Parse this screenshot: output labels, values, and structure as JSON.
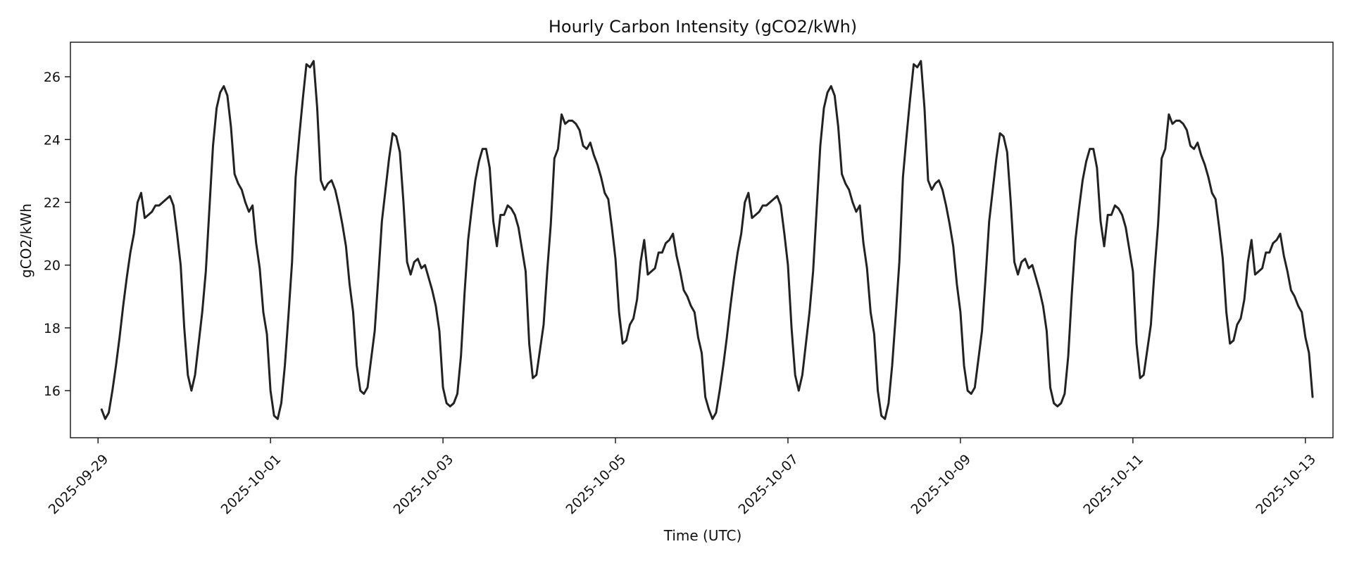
{
  "chart_data": {
    "type": "line",
    "title": "Hourly Carbon Intensity (gCO2/kWh)",
    "xlabel": "Time (UTC)",
    "ylabel": "gCO2/kWh",
    "ylim": [
      14.5,
      27.1
    ],
    "xlim_days": [
      -0.32,
      14.32
    ],
    "y_ticks": [
      16,
      18,
      20,
      22,
      24,
      26
    ],
    "x_ticks": [
      {
        "label": "2025-09-29",
        "day": 0
      },
      {
        "label": "2025-10-01",
        "day": 2
      },
      {
        "label": "2025-10-03",
        "day": 4
      },
      {
        "label": "2025-10-05",
        "day": 6
      },
      {
        "label": "2025-10-07",
        "day": 8
      },
      {
        "label": "2025-10-09",
        "day": 10
      },
      {
        "label": "2025-10-11",
        "day": 12
      },
      {
        "label": "2025-10-13",
        "day": 14
      }
    ],
    "grid": false,
    "line_color": "#222222",
    "series": [
      {
        "name": "carbon_intensity",
        "x_unit": "days since 2025-09-29 00:00 UTC (hourly)",
        "start_day": 0.0417,
        "step_days": 0.041667,
        "values": [
          15.4,
          15.1,
          15.3,
          16.0,
          16.8,
          17.7,
          18.7,
          19.6,
          20.4,
          21.0,
          22.0,
          22.3,
          21.5,
          21.6,
          21.7,
          21.9,
          21.9,
          22.0,
          22.1,
          22.2,
          21.9,
          21.0,
          20.0,
          18.0,
          16.5,
          16.0,
          16.5,
          17.5,
          18.5,
          19.8,
          21.8,
          23.8,
          25.0,
          25.5,
          25.7,
          25.4,
          24.4,
          22.9,
          22.6,
          22.4,
          22.0,
          21.7,
          21.9,
          20.7,
          19.9,
          18.5,
          17.8,
          16.0,
          15.2,
          15.1,
          15.6,
          16.8,
          18.4,
          20.1,
          22.8,
          24.1,
          25.3,
          26.4,
          26.3,
          26.5,
          25.0,
          22.7,
          22.4,
          22.6,
          22.7,
          22.4,
          21.9,
          21.3,
          20.6,
          19.4,
          18.5,
          16.8,
          16.0,
          15.9,
          16.1,
          17.0,
          17.9,
          19.6,
          21.4,
          22.4,
          23.4,
          24.2,
          24.1,
          23.6,
          22.0,
          20.1,
          19.7,
          20.1,
          20.2,
          19.9,
          20.0,
          19.6,
          19.2,
          18.7,
          17.9,
          16.1,
          15.6,
          15.5,
          15.6,
          15.9,
          17.1,
          19.1,
          20.8,
          21.8,
          22.7,
          23.3,
          23.7,
          23.7,
          23.1,
          21.4,
          20.6,
          21.6,
          21.6,
          21.9,
          21.8,
          21.6,
          21.2,
          20.5,
          19.8,
          17.5,
          16.4,
          16.5,
          17.3,
          18.1,
          19.8,
          21.3,
          23.4,
          23.7,
          24.8,
          24.5,
          24.6,
          24.6,
          24.5,
          24.3,
          23.8,
          23.7,
          23.9,
          23.5,
          23.2,
          22.8,
          22.3,
          22.1,
          21.2,
          20.2,
          18.5,
          17.5,
          17.6,
          18.1,
          18.3,
          18.9,
          20.1,
          20.8,
          19.7,
          19.8,
          19.9,
          20.4,
          20.4,
          20.7,
          20.8,
          21.0,
          20.3,
          19.8,
          19.2,
          19.0,
          18.7,
          18.5,
          17.7,
          17.2,
          15.8,
          15.4,
          15.1,
          15.3,
          16.0,
          16.8,
          17.7,
          18.7,
          19.6,
          20.4,
          21.0,
          22.0,
          22.3,
          21.5,
          21.6,
          21.7,
          21.9,
          21.9,
          22.0,
          22.1,
          22.2,
          21.9,
          21.0,
          20.0,
          18.0,
          16.5,
          16.0,
          16.5,
          17.5,
          18.5,
          19.8,
          21.8,
          23.8,
          25.0,
          25.5,
          25.7,
          25.4,
          24.4,
          22.9,
          22.6,
          22.4,
          22.0,
          21.7,
          21.9,
          20.7,
          19.9,
          18.5,
          17.8,
          16.0,
          15.2,
          15.1,
          15.6,
          16.8,
          18.4,
          20.1,
          22.8,
          24.1,
          25.3,
          26.4,
          26.3,
          26.5,
          25.0,
          22.7,
          22.4,
          22.6,
          22.7,
          22.4,
          21.9,
          21.3,
          20.6,
          19.4,
          18.5,
          16.8,
          16.0,
          15.9,
          16.1,
          17.0,
          17.9,
          19.6,
          21.4,
          22.4,
          23.4,
          24.2,
          24.1,
          23.6,
          22.0,
          20.1,
          19.7,
          20.1,
          20.2,
          19.9,
          20.0,
          19.6,
          19.2,
          18.7,
          17.9,
          16.1,
          15.6,
          15.5,
          15.6,
          15.9,
          17.1,
          19.1,
          20.8,
          21.8,
          22.7,
          23.3,
          23.7,
          23.7,
          23.1,
          21.4,
          20.6,
          21.6,
          21.6,
          21.9,
          21.8,
          21.6,
          21.2,
          20.5,
          19.8,
          17.5,
          16.4,
          16.5,
          17.3,
          18.1,
          19.8,
          21.3,
          23.4,
          23.7,
          24.8,
          24.5,
          24.6,
          24.6,
          24.5,
          24.3,
          23.8,
          23.7,
          23.9,
          23.5,
          23.2,
          22.8,
          22.3,
          22.1,
          21.2,
          20.2,
          18.5,
          17.5,
          17.6,
          18.1,
          18.3,
          18.9,
          20.1,
          20.8,
          19.7,
          19.8,
          19.9,
          20.4,
          20.4,
          20.7,
          20.8,
          21.0,
          20.3,
          19.8,
          19.2,
          19.0,
          18.7,
          18.5,
          17.7,
          17.2,
          15.8
        ]
      }
    ]
  }
}
